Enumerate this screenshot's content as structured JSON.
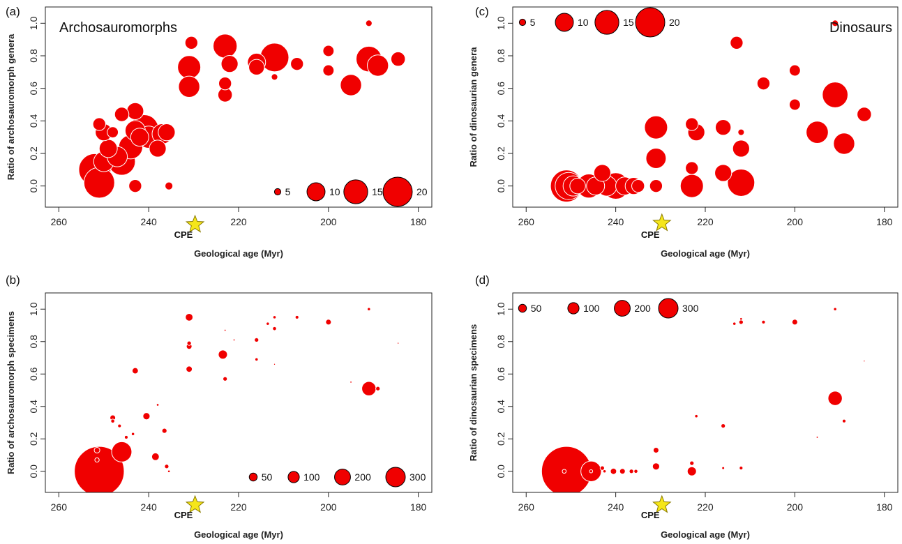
{
  "colors": {
    "bubble": "#f00000",
    "bubble_stroke": "#ffffff",
    "star": "#f5e61a",
    "star_stroke": "#8a7a00",
    "axis": "#222222"
  },
  "chart_data": [
    {
      "id": "a",
      "type": "scatter",
      "panel_label": "(a)",
      "inset_title": "Archosauromorphs",
      "inset_position": "top-left",
      "xlabel": "Geological age (Myr)",
      "ylabel": "Ratio of archosauromorph genera",
      "xlim": [
        263,
        177
      ],
      "ylim": [
        -0.13,
        1.1
      ],
      "x_ticks": [
        260,
        240,
        220,
        200,
        180
      ],
      "y_ticks": [
        0.0,
        0.2,
        0.4,
        0.6,
        0.8,
        1.0
      ],
      "y_tick_labels": [
        "0.0",
        "0.2",
        "0.4",
        "0.6",
        "0.8",
        "1.0"
      ],
      "legend": {
        "position": "bottom-right",
        "entries": [
          "5",
          "10",
          "15",
          "20"
        ],
        "sizes": [
          1,
          8,
          14,
          21
        ],
        "size_scale": 21
      },
      "cpe": {
        "label": "CPE",
        "x": 230
      },
      "points": [
        {
          "x": 252,
          "y": 0.1,
          "s": 25
        },
        {
          "x": 251,
          "y": 0.02,
          "s": 23
        },
        {
          "x": 250,
          "y": 0.15,
          "s": 10
        },
        {
          "x": 247,
          "y": 0.18,
          "s": 10
        },
        {
          "x": 246,
          "y": 0.15,
          "s": 18
        },
        {
          "x": 244,
          "y": 0.24,
          "s": 14
        },
        {
          "x": 243,
          "y": 0.34,
          "s": 10
        },
        {
          "x": 242,
          "y": 0.3,
          "s": 8
        },
        {
          "x": 241,
          "y": 0.35,
          "s": 20
        },
        {
          "x": 240,
          "y": 0.3,
          "s": 12
        },
        {
          "x": 238,
          "y": 0.23,
          "s": 7
        },
        {
          "x": 237,
          "y": 0.32,
          "s": 10
        },
        {
          "x": 236,
          "y": 0.33,
          "s": 7
        },
        {
          "x": 243,
          "y": 0.46,
          "s": 7
        },
        {
          "x": 246,
          "y": 0.44,
          "s": 5
        },
        {
          "x": 250,
          "y": 0.33,
          "s": 7
        },
        {
          "x": 251,
          "y": 0.38,
          "s": 4
        },
        {
          "x": 248,
          "y": 0.33,
          "s": 3
        },
        {
          "x": 249,
          "y": 0.23,
          "s": 8
        },
        {
          "x": 243,
          "y": 0.0,
          "s": 4
        },
        {
          "x": 235.5,
          "y": 0.0,
          "s": 1.5
        },
        {
          "x": 231,
          "y": 0.73,
          "s": 13
        },
        {
          "x": 231,
          "y": 0.61,
          "s": 11
        },
        {
          "x": 230.5,
          "y": 0.88,
          "s": 4
        },
        {
          "x": 223,
          "y": 0.86,
          "s": 14
        },
        {
          "x": 222,
          "y": 0.75,
          "s": 7
        },
        {
          "x": 223,
          "y": 0.63,
          "s": 4
        },
        {
          "x": 223,
          "y": 0.56,
          "s": 5
        },
        {
          "x": 216,
          "y": 0.76,
          "s": 8
        },
        {
          "x": 216,
          "y": 0.73,
          "s": 6
        },
        {
          "x": 212,
          "y": 0.79,
          "s": 20
        },
        {
          "x": 212,
          "y": 0.67,
          "s": 1
        },
        {
          "x": 207,
          "y": 0.75,
          "s": 4
        },
        {
          "x": 200,
          "y": 0.83,
          "s": 3
        },
        {
          "x": 200,
          "y": 0.71,
          "s": 3
        },
        {
          "x": 195,
          "y": 0.62,
          "s": 11
        },
        {
          "x": 191,
          "y": 0.78,
          "s": 16
        },
        {
          "x": 189,
          "y": 0.74,
          "s": 11
        },
        {
          "x": 184.5,
          "y": 0.78,
          "s": 5
        },
        {
          "x": 191,
          "y": 1.0,
          "s": 1
        }
      ]
    },
    {
      "id": "c",
      "type": "scatter",
      "panel_label": "(c)",
      "inset_title": "Dinosaurs",
      "inset_position": "top-right",
      "xlabel": "Geological age (Myr)",
      "ylabel": "Ratio of dinosaurian genera",
      "xlim": [
        263,
        177
      ],
      "ylim": [
        -0.13,
        1.1
      ],
      "x_ticks": [
        260,
        240,
        220,
        200,
        180
      ],
      "y_ticks": [
        0.0,
        0.2,
        0.4,
        0.6,
        0.8,
        1.0
      ],
      "y_tick_labels": [
        "0.0",
        "0.2",
        "0.4",
        "0.6",
        "0.8",
        "1.0"
      ],
      "legend": {
        "position": "top-left",
        "entries": [
          "5",
          "10",
          "15",
          "20"
        ],
        "sizes": [
          1,
          8,
          14,
          21
        ],
        "size_scale": 21
      },
      "cpe": {
        "label": "CPE",
        "x": 230
      },
      "points": [
        {
          "x": 251,
          "y": 0.0,
          "s": 25
        },
        {
          "x": 250.5,
          "y": 0.0,
          "s": 18
        },
        {
          "x": 249.5,
          "y": 0.0,
          "s": 10
        },
        {
          "x": 248.5,
          "y": 0.0,
          "s": 6
        },
        {
          "x": 246,
          "y": 0.0,
          "s": 14
        },
        {
          "x": 244.5,
          "y": 0.0,
          "s": 8
        },
        {
          "x": 243,
          "y": 0.08,
          "s": 7
        },
        {
          "x": 242,
          "y": 0.0,
          "s": 10
        },
        {
          "x": 240,
          "y": 0.0,
          "s": 17
        },
        {
          "x": 238,
          "y": 0.0,
          "s": 8
        },
        {
          "x": 236,
          "y": 0.0,
          "s": 7
        },
        {
          "x": 235,
          "y": 0.0,
          "s": 4
        },
        {
          "x": 231,
          "y": 0.36,
          "s": 13
        },
        {
          "x": 231,
          "y": 0.17,
          "s": 10
        },
        {
          "x": 231,
          "y": 0.0,
          "s": 4
        },
        {
          "x": 223,
          "y": 0.38,
          "s": 4
        },
        {
          "x": 222,
          "y": 0.33,
          "s": 7
        },
        {
          "x": 223,
          "y": 0.11,
          "s": 4
        },
        {
          "x": 223,
          "y": 0.0,
          "s": 13
        },
        {
          "x": 216,
          "y": 0.36,
          "s": 6
        },
        {
          "x": 216,
          "y": 0.08,
          "s": 7
        },
        {
          "x": 212,
          "y": 0.23,
          "s": 7
        },
        {
          "x": 212,
          "y": 0.33,
          "s": 1
        },
        {
          "x": 212,
          "y": 0.02,
          "s": 18
        },
        {
          "x": 213,
          "y": 0.88,
          "s": 4
        },
        {
          "x": 207,
          "y": 0.63,
          "s": 4
        },
        {
          "x": 200,
          "y": 0.71,
          "s": 3
        },
        {
          "x": 200,
          "y": 0.5,
          "s": 3
        },
        {
          "x": 195,
          "y": 0.33,
          "s": 12
        },
        {
          "x": 191,
          "y": 0.56,
          "s": 16
        },
        {
          "x": 189,
          "y": 0.26,
          "s": 11
        },
        {
          "x": 184.5,
          "y": 0.44,
          "s": 5
        },
        {
          "x": 191,
          "y": 1.0,
          "s": 1
        }
      ]
    },
    {
      "id": "b",
      "type": "scatter",
      "panel_label": "(b)",
      "inset_title": "",
      "xlabel": "Geological age (Myr)",
      "ylabel": "Ratio of archosauromorph specimens",
      "xlim": [
        263,
        177
      ],
      "ylim": [
        -0.13,
        1.1
      ],
      "x_ticks": [
        260,
        240,
        220,
        200,
        180
      ],
      "y_ticks": [
        0.0,
        0.2,
        0.4,
        0.6,
        0.8,
        1.0
      ],
      "y_tick_labels": [
        "0.0",
        "0.2",
        "0.4",
        "0.6",
        "0.8",
        "1.0"
      ],
      "legend": {
        "position": "bottom-right",
        "entries": [
          "50",
          "100",
          "200",
          "300"
        ],
        "sizes": [
          50,
          100,
          200,
          300
        ],
        "size_scale": 300
      },
      "cpe": {
        "label": "CPE",
        "x": 230
      },
      "points": [
        {
          "x": 251,
          "y": 0.0,
          "s": 1950
        },
        {
          "x": 246,
          "y": 0.12,
          "s": 320
        },
        {
          "x": 243,
          "y": 0.62,
          "s": 30
        },
        {
          "x": 240.5,
          "y": 0.34,
          "s": 40
        },
        {
          "x": 238.5,
          "y": 0.09,
          "s": 45
        },
        {
          "x": 236.5,
          "y": 0.25,
          "s": 20
        },
        {
          "x": 236,
          "y": 0.03,
          "s": 15
        },
        {
          "x": 251.5,
          "y": 0.13,
          "s": 25
        },
        {
          "x": 251.5,
          "y": 0.07,
          "s": 15
        },
        {
          "x": 248,
          "y": 0.33,
          "s": 25
        },
        {
          "x": 248,
          "y": 0.31,
          "s": 12
        },
        {
          "x": 246.5,
          "y": 0.28,
          "s": 10
        },
        {
          "x": 245,
          "y": 0.21,
          "s": 10
        },
        {
          "x": 243.5,
          "y": 0.23,
          "s": 8
        },
        {
          "x": 238,
          "y": 0.41,
          "s": 5
        },
        {
          "x": 235.5,
          "y": 0.0,
          "s": 5
        },
        {
          "x": 231,
          "y": 0.95,
          "s": 45
        },
        {
          "x": 231,
          "y": 0.79,
          "s": 15
        },
        {
          "x": 231,
          "y": 0.77,
          "s": 25
        },
        {
          "x": 231,
          "y": 0.63,
          "s": 30
        },
        {
          "x": 223.5,
          "y": 0.72,
          "s": 65
        },
        {
          "x": 223,
          "y": 0.57,
          "s": 15
        },
        {
          "x": 223,
          "y": 0.87,
          "s": 3
        },
        {
          "x": 221,
          "y": 0.81,
          "s": 3
        },
        {
          "x": 216,
          "y": 0.81,
          "s": 15
        },
        {
          "x": 216,
          "y": 0.69,
          "s": 8
        },
        {
          "x": 213.5,
          "y": 0.91,
          "s": 8
        },
        {
          "x": 212,
          "y": 0.95,
          "s": 8
        },
        {
          "x": 212,
          "y": 0.88,
          "s": 12
        },
        {
          "x": 212,
          "y": 0.66,
          "s": 2
        },
        {
          "x": 207,
          "y": 0.95,
          "s": 10
        },
        {
          "x": 200,
          "y": 0.92,
          "s": 25
        },
        {
          "x": 195,
          "y": 0.55,
          "s": 3
        },
        {
          "x": 191,
          "y": 0.51,
          "s": 160
        },
        {
          "x": 189,
          "y": 0.51,
          "s": 15
        },
        {
          "x": 191,
          "y": 1.0,
          "s": 8
        },
        {
          "x": 184.5,
          "y": 0.79,
          "s": 1
        }
      ]
    },
    {
      "id": "d",
      "type": "scatter",
      "panel_label": "(d)",
      "inset_title": "",
      "xlabel": "Geological age (Myr)",
      "ylabel": "Ratio of dinosaurian specimens",
      "xlim": [
        263,
        177
      ],
      "ylim": [
        -0.13,
        1.1
      ],
      "x_ticks": [
        260,
        240,
        220,
        200,
        180
      ],
      "y_ticks": [
        0.0,
        0.2,
        0.4,
        0.6,
        0.8,
        1.0
      ],
      "y_tick_labels": [
        "0.0",
        "0.2",
        "0.4",
        "0.6",
        "0.8",
        "1.0"
      ],
      "legend": {
        "position": "top-left",
        "entries": [
          "50",
          "100",
          "200",
          "300"
        ],
        "sizes": [
          50,
          100,
          200,
          300
        ],
        "size_scale": 300
      },
      "cpe": {
        "label": "CPE",
        "x": 230
      },
      "points": [
        {
          "x": 251,
          "y": 0.0,
          "s": 1950
        },
        {
          "x": 245.5,
          "y": 0.0,
          "s": 330
        },
        {
          "x": 251.5,
          "y": 0.0,
          "s": 12
        },
        {
          "x": 245.5,
          "y": 0.0,
          "s": 8
        },
        {
          "x": 243,
          "y": 0.02,
          "s": 15
        },
        {
          "x": 242.5,
          "y": 0.0,
          "s": 8
        },
        {
          "x": 240.5,
          "y": 0.0,
          "s": 30
        },
        {
          "x": 238.5,
          "y": 0.0,
          "s": 25
        },
        {
          "x": 236.5,
          "y": 0.0,
          "s": 15
        },
        {
          "x": 235.5,
          "y": 0.0,
          "s": 12
        },
        {
          "x": 231,
          "y": 0.13,
          "s": 25
        },
        {
          "x": 231,
          "y": 0.03,
          "s": 40
        },
        {
          "x": 223,
          "y": 0.0,
          "s": 65
        },
        {
          "x": 223,
          "y": 0.05,
          "s": 15
        },
        {
          "x": 222,
          "y": 0.34,
          "s": 8
        },
        {
          "x": 216,
          "y": 0.28,
          "s": 15
        },
        {
          "x": 216,
          "y": 0.02,
          "s": 6
        },
        {
          "x": 212,
          "y": 0.02,
          "s": 10
        },
        {
          "x": 213.5,
          "y": 0.91,
          "s": 8
        },
        {
          "x": 212,
          "y": 0.92,
          "s": 15
        },
        {
          "x": 212,
          "y": 0.94,
          "s": 5
        },
        {
          "x": 207,
          "y": 0.92,
          "s": 10
        },
        {
          "x": 200,
          "y": 0.92,
          "s": 25
        },
        {
          "x": 195,
          "y": 0.21,
          "s": 3
        },
        {
          "x": 191,
          "y": 0.45,
          "s": 160
        },
        {
          "x": 189,
          "y": 0.31,
          "s": 10
        },
        {
          "x": 191,
          "y": 1.0,
          "s": 8
        },
        {
          "x": 184.5,
          "y": 0.68,
          "s": 1
        }
      ]
    }
  ]
}
